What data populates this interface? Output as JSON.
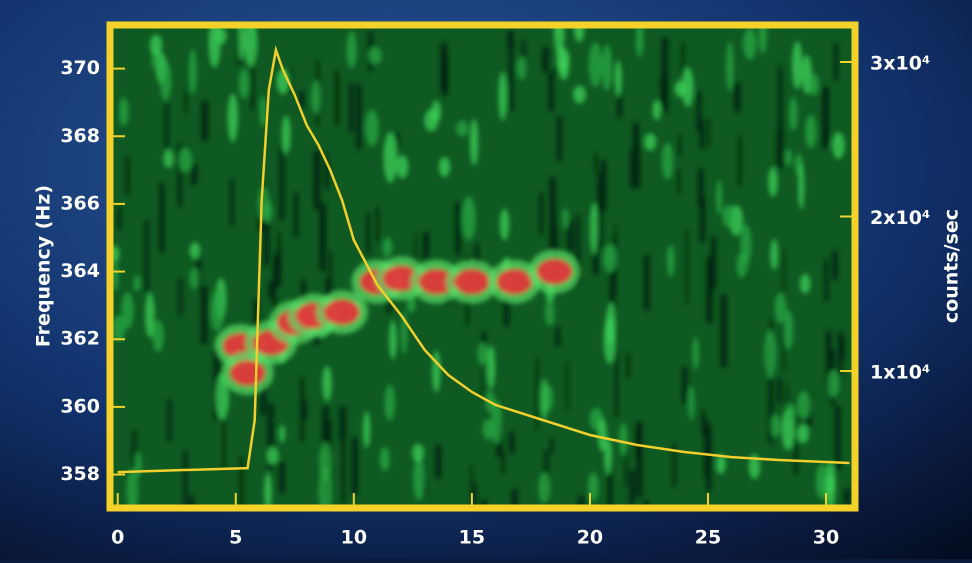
{
  "chart_data": {
    "type": "spectrogram",
    "ylabel": "Frequency (Hz)",
    "y2label": "counts/sec",
    "xlim": [
      -0.2,
      31.1
    ],
    "xticks": [
      0,
      5,
      10,
      15,
      20,
      25,
      30
    ],
    "ylim": [
      357.1,
      371.2
    ],
    "yticks": [
      358,
      360,
      362,
      364,
      366,
      368,
      370
    ],
    "y2lim": [
      1330,
      32200
    ],
    "y2ticks": [
      {
        "value": 10000,
        "label": "1x10⁴"
      },
      {
        "value": 20000,
        "label": "2x10⁴"
      },
      {
        "value": 30000,
        "label": "3x10⁴"
      }
    ],
    "frame_color": "#f5d22a",
    "background_color": "#0f5a22",
    "series": [
      {
        "color": "#f2cf2c",
        "axis": "y2",
        "x": [
          0,
          5.5,
          5.8,
          6.1,
          6.4,
          6.7,
          7.0,
          7.5,
          8,
          8.5,
          9,
          9.5,
          10,
          11,
          12,
          13,
          14,
          15,
          16,
          18,
          20,
          22,
          24,
          26,
          28,
          30,
          31
        ],
        "values": [
          3460,
          3720,
          6830,
          21070,
          28190,
          30780,
          29480,
          27860,
          25920,
          24630,
          23010,
          21070,
          18480,
          15570,
          13620,
          11360,
          9740,
          8640,
          7800,
          6830,
          5860,
          5210,
          4760,
          4430,
          4240,
          4110,
          4050
        ]
      },
      {
        "color": "#e8323a",
        "axis": "y",
        "x": [
          5.2,
          5.5,
          6.5,
          7.5,
          8.3,
          9.5,
          11,
          12,
          13.5,
          15,
          16.8,
          18.5
        ],
        "values": [
          361.8,
          361.0,
          361.9,
          362.5,
          362.7,
          362.8,
          363.7,
          363.8,
          363.7,
          363.7,
          363.7,
          364.0
        ]
      }
    ]
  }
}
